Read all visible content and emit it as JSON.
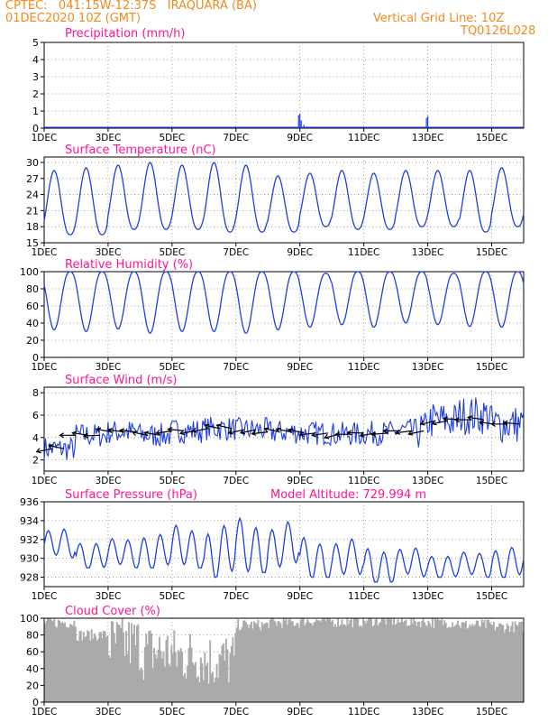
{
  "header": {
    "line1": "CPTEC:   041:15W-12:37S   IRAQUARA (BA)",
    "line2": "01DEC2020 10Z (GMT)",
    "grid_note": "Vertical Grid Line: 10Z",
    "code": "TQ0126L028"
  },
  "x_tick_labels": [
    "1DEC",
    "3DEC",
    "5DEC",
    "7DEC",
    "9DEC",
    "11DEC",
    "13DEC",
    "15DEC"
  ],
  "colors": {
    "header": "#f08a1e",
    "title": "#ff1493",
    "series": "#1f3fe0",
    "wind_arrows": "#000000",
    "cloud": "#aaaaaa",
    "grid": "#888888"
  },
  "chart_data": [
    {
      "type": "line",
      "title": "Precipitation (mm/h)",
      "x": "hours since 01DEC2020 10Z",
      "ylim": [
        0,
        5
      ],
      "yticks": [
        0,
        1,
        2,
        3,
        4,
        5
      ],
      "spikes": [
        [
          191,
          0.75
        ],
        [
          192,
          0.85
        ],
        [
          193,
          0.45
        ],
        [
          195,
          0.2
        ],
        [
          287,
          0.6
        ],
        [
          288,
          0.7
        ]
      ],
      "baseline": 0.05
    },
    {
      "type": "line",
      "title": "Surface Temperature (nC)",
      "ylim": [
        15,
        31
      ],
      "yticks": [
        15,
        18,
        21,
        24,
        27,
        30
      ],
      "daily_max": [
        28.5,
        29,
        29.5,
        30,
        29.5,
        30,
        29.5,
        27.5,
        28,
        28.5,
        28,
        28.5,
        28.5,
        28.5,
        29
      ],
      "daily_min": [
        16.5,
        16.5,
        17.5,
        17.5,
        17.5,
        17,
        17,
        17,
        18,
        17.5,
        17.5,
        18,
        18,
        17,
        18
      ]
    },
    {
      "type": "line",
      "title": "Relative Humidity (%)",
      "ylim": [
        0,
        100
      ],
      "yticks": [
        0,
        20,
        40,
        60,
        80,
        100
      ],
      "daily_max": [
        100,
        100,
        100,
        100,
        100,
        100,
        100,
        100,
        98,
        100,
        100,
        100,
        98,
        100,
        100
      ],
      "daily_min": [
        32,
        30,
        33,
        28,
        30,
        30,
        28,
        32,
        35,
        38,
        35,
        40,
        38,
        36,
        35
      ]
    },
    {
      "type": "line",
      "title": "Surface Wind (m/s)",
      "ylim": [
        1,
        8.5
      ],
      "yticks": [
        2,
        4,
        6,
        8
      ],
      "daily_mean": [
        3.0,
        4.2,
        4.5,
        4.2,
        4.6,
        4.8,
        4.7,
        4.5,
        4.4,
        4.3,
        4.4,
        4.6,
        5.5,
        6.0,
        5.2
      ]
    },
    {
      "type": "line",
      "title": "Surface Pressure (hPa)",
      "annotation": "Model Altitude: 729.994 m",
      "ylim": [
        927,
        936
      ],
      "yticks": [
        928,
        930,
        932,
        934,
        936
      ],
      "daily_max": [
        933.5,
        932.5,
        932.5,
        933.5,
        934,
        934.5,
        935,
        934.5,
        933,
        932.5,
        932,
        931.5,
        931,
        931,
        932
      ],
      "daily_min": [
        930,
        929,
        929,
        929,
        929,
        928,
        928.5,
        929,
        928,
        928,
        927.5,
        928,
        928,
        928,
        928
      ]
    },
    {
      "type": "bar",
      "title": "Cloud Cover (%)",
      "ylim": [
        0,
        100
      ],
      "yticks": [
        0,
        20,
        40,
        60,
        80,
        100
      ],
      "daily_mean": [
        95,
        80,
        70,
        60,
        55,
        50,
        92,
        95,
        97,
        96,
        97,
        96,
        95,
        92,
        90
      ]
    }
  ]
}
